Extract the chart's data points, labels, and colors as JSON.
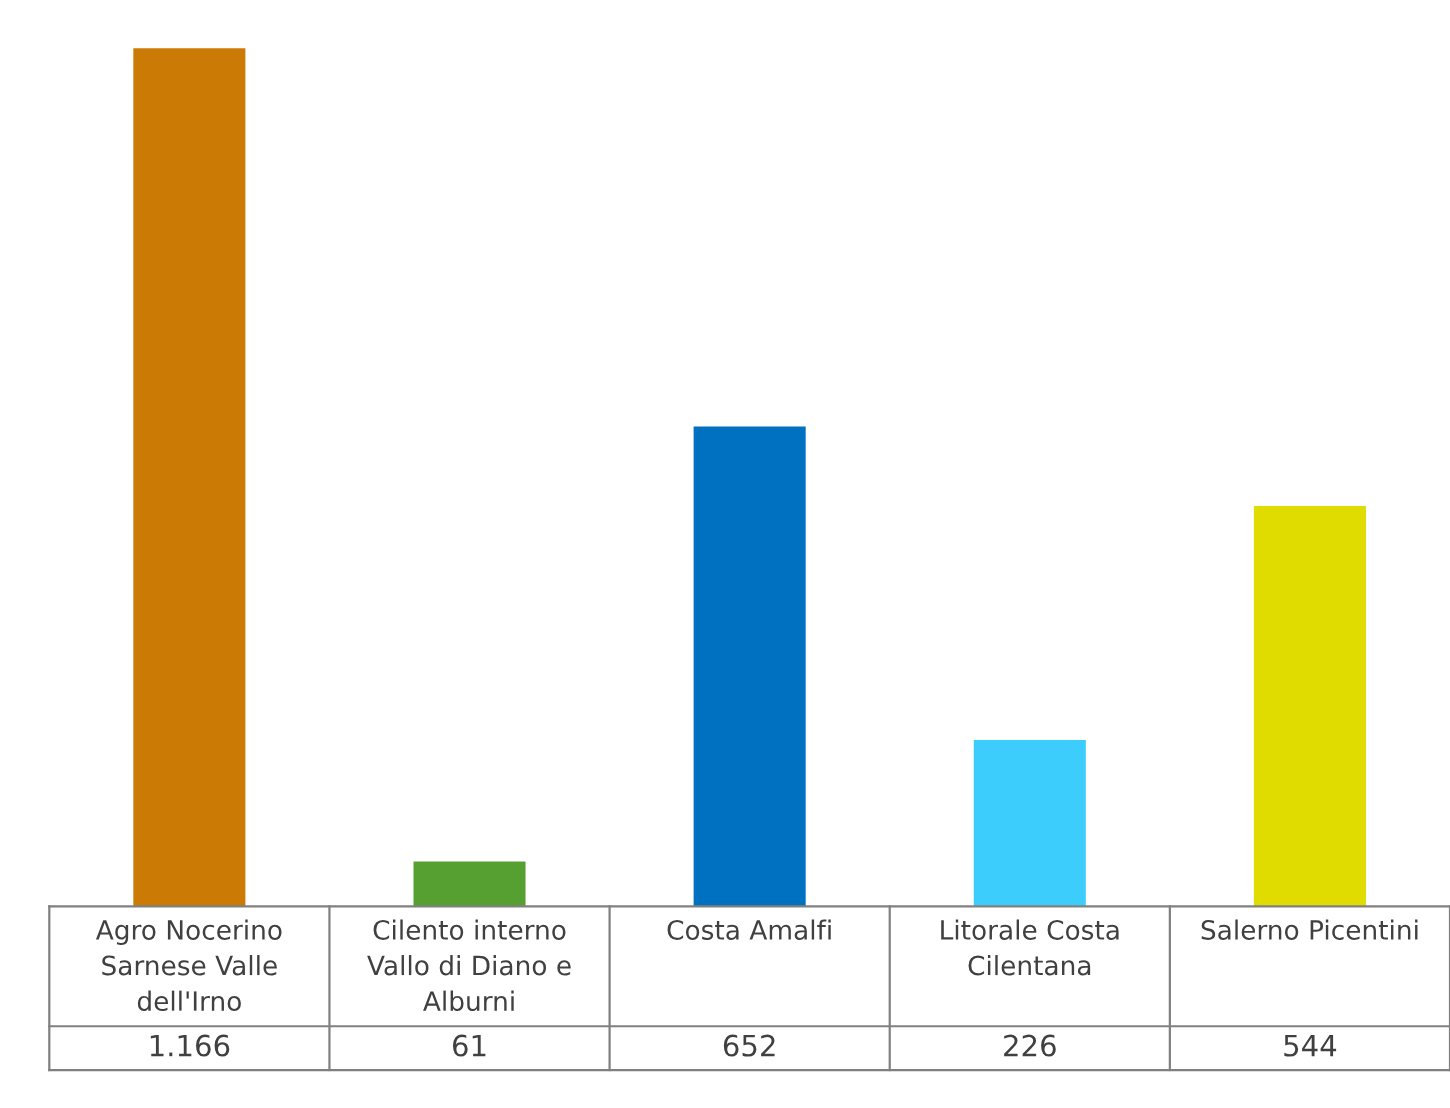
{
  "chart_data": {
    "type": "bar",
    "categories": [
      "Agro Nocerino Sarnese Valle dell'Irno",
      "Cilento interno Vallo di Diano e Alburni",
      "Costa Amalfi",
      "Litorale Costa Cilentana",
      "Salerno Picentini"
    ],
    "values": [
      1166,
      61,
      652,
      226,
      544
    ],
    "value_labels": [
      "1.166",
      "61",
      "652",
      "226",
      "544"
    ],
    "colors": [
      "#cc7a06",
      "#56a032",
      "#0070c0",
      "#3ccdfc",
      "#e0dc00"
    ]
  }
}
